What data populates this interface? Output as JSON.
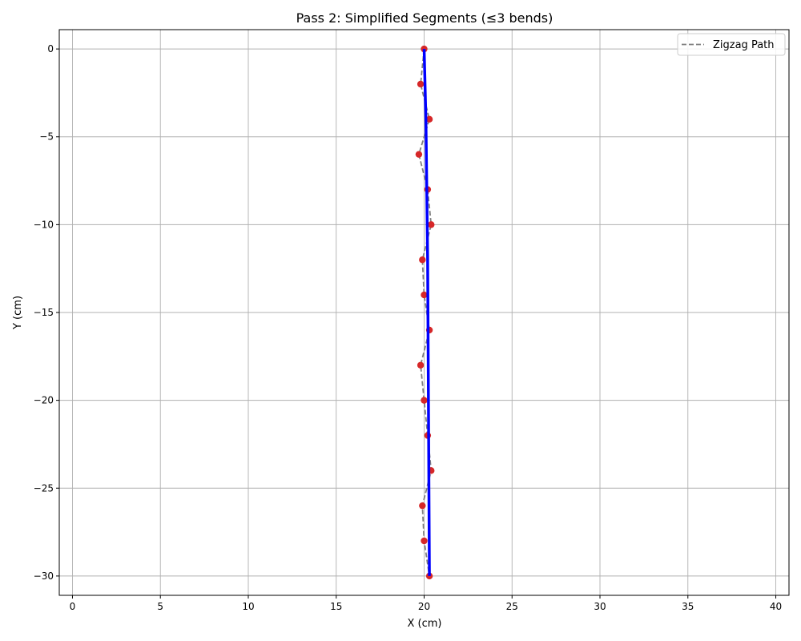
{
  "chart_data": {
    "type": "line",
    "title": "Pass 2: Simplified Segments (≤3 bends)",
    "xlabel": "X (cm)",
    "ylabel": "Y (cm)",
    "xlim": [
      -0.75,
      40.75
    ],
    "ylim": [
      -31.1,
      1.1
    ],
    "xticks": [
      0,
      5,
      10,
      15,
      20,
      25,
      30,
      35,
      40
    ],
    "yticks": [
      0,
      -5,
      -10,
      -15,
      -20,
      -25,
      -30
    ],
    "xtick_labels": [
      "0",
      "5",
      "10",
      "15",
      "20",
      "25",
      "30",
      "35",
      "40"
    ],
    "ytick_labels": [
      "0",
      "−5",
      "−10",
      "−15",
      "−20",
      "−25",
      "−30"
    ],
    "grid": true,
    "legend_position": "top-right",
    "series": [
      {
        "name": "Zigzag Path",
        "style": "dashed",
        "color": "#7f7f7f",
        "points": [
          [
            20.0,
            0
          ],
          [
            19.8,
            -2
          ],
          [
            20.3,
            -4
          ],
          [
            19.7,
            -6
          ],
          [
            20.2,
            -8
          ],
          [
            20.4,
            -10
          ],
          [
            19.9,
            -12
          ],
          [
            20.0,
            -14
          ],
          [
            20.3,
            -16
          ],
          [
            19.8,
            -18
          ],
          [
            20.0,
            -20
          ],
          [
            20.2,
            -22
          ],
          [
            20.4,
            -24
          ],
          [
            19.9,
            -26
          ],
          [
            20.0,
            -28
          ],
          [
            20.3,
            -30
          ]
        ]
      },
      {
        "style": "solid",
        "color": "#0000ff",
        "points": [
          [
            20.0,
            0
          ],
          [
            20.1,
            -4
          ],
          [
            20.2,
            -12
          ],
          [
            20.3,
            -30
          ]
        ]
      },
      {
        "style": "markers",
        "color": "#d62728",
        "points": [
          [
            20.0,
            0
          ],
          [
            19.8,
            -2
          ],
          [
            20.3,
            -4
          ],
          [
            19.7,
            -6
          ],
          [
            20.2,
            -8
          ],
          [
            20.4,
            -10
          ],
          [
            19.9,
            -12
          ],
          [
            20.0,
            -14
          ],
          [
            20.3,
            -16
          ],
          [
            19.8,
            -18
          ],
          [
            20.0,
            -20
          ],
          [
            20.2,
            -22
          ],
          [
            20.4,
            -24
          ],
          [
            19.9,
            -26
          ],
          [
            20.0,
            -28
          ],
          [
            20.3,
            -30
          ]
        ]
      }
    ]
  }
}
